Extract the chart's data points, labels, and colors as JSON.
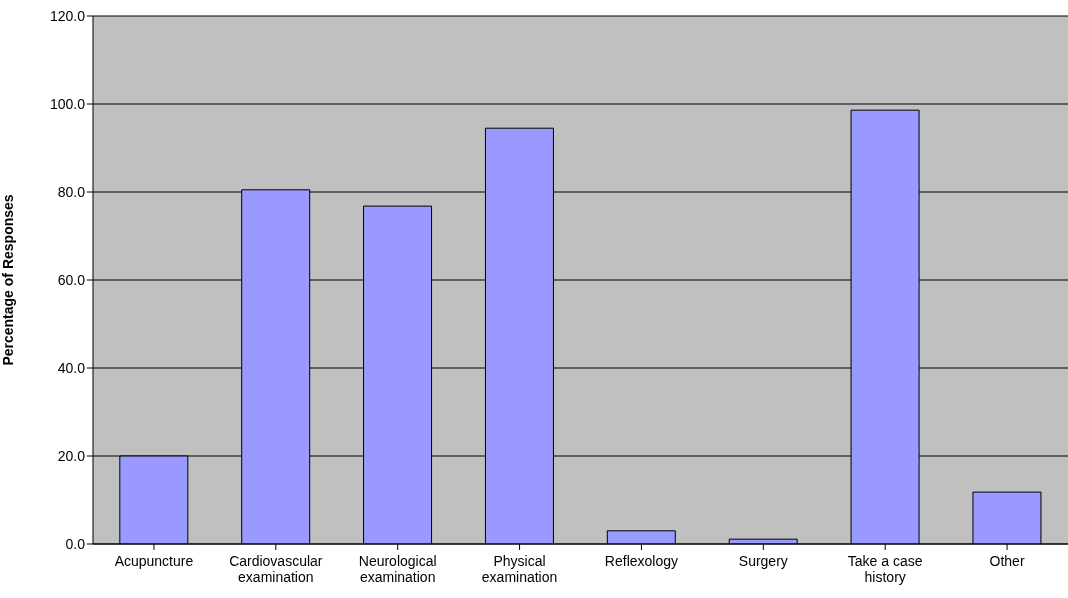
{
  "chart_data": {
    "type": "bar",
    "ylabel": "Percentage of Responses",
    "categories": [
      "Acupuncture",
      "Cardiovascular examination",
      "Neurological examination",
      "Physical examination",
      "Reflexology",
      "Surgery",
      "Take a case history",
      "Other"
    ],
    "values": [
      20.0,
      80.5,
      76.8,
      94.5,
      3.0,
      1.1,
      98.6,
      11.8
    ],
    "color": "#9999ff",
    "ylim": [
      0,
      120
    ],
    "yticks": [
      {
        "value": 0,
        "label": "0.0"
      },
      {
        "value": 20,
        "label": "20.0"
      },
      {
        "value": 40,
        "label": "40.0"
      },
      {
        "value": 60,
        "label": "60.0"
      },
      {
        "value": 80,
        "label": "80.0"
      },
      {
        "value": 100,
        "label": "100.0"
      },
      {
        "value": 120,
        "label": "120.0"
      }
    ],
    "grid": "y"
  }
}
